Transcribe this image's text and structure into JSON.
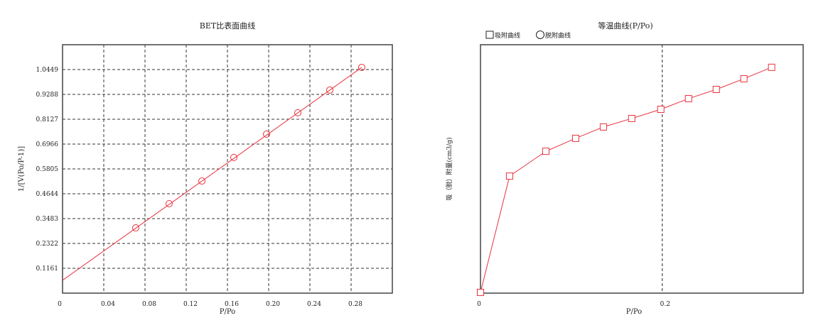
{
  "chart_data": [
    {
      "type": "scatter",
      "title": "BET比表面曲线",
      "xlabel": "P/Po",
      "ylabel": "1/[V(Po/P-1)]",
      "xlim": [
        0,
        0.32
      ],
      "ylim": [
        0,
        1.161
      ],
      "x_ticks": [
        "0",
        "0.04",
        "0.08",
        "0.12",
        "0.16",
        "0.20",
        "0.24",
        "0.28"
      ],
      "x_tick_values": [
        0,
        0.04,
        0.08,
        0.12,
        0.16,
        0.2,
        0.24,
        0.28
      ],
      "y_ticks": [
        "0.1161",
        "0.2322",
        "0.3483",
        "0.4644",
        "0.5805",
        "0.6966",
        "0.8127",
        "0.9288",
        "1.0449"
      ],
      "y_tick_values": [
        0.1161,
        0.2322,
        0.3483,
        0.4644,
        0.5805,
        0.6966,
        0.8127,
        0.9288,
        1.0449
      ],
      "grid": true,
      "marker": "circle",
      "color": "#e8323c",
      "x": [
        0.071,
        0.1034,
        0.1352,
        0.1662,
        0.1979,
        0.2283,
        0.2593,
        0.2903
      ],
      "y": [
        0.305,
        0.418,
        0.524,
        0.634,
        0.743,
        0.843,
        0.949,
        1.055
      ],
      "fit_line": {
        "x": [
          0,
          0.2903
        ],
        "y": [
          0.06,
          1.055
        ]
      }
    },
    {
      "type": "line",
      "title": "等温曲线(P/Po)",
      "xlabel": "P/Po",
      "ylabel": "吸（脱）附量(cm3/g)",
      "xlim": [
        0,
        0.355
      ],
      "ylim": [
        0,
        100
      ],
      "x_ticks": [
        "0",
        "0.2"
      ],
      "x_tick_values": [
        0,
        0.2
      ],
      "grid": "vertical at 0.2",
      "legend": {
        "position": "top-left",
        "entries": [
          {
            "label": "吸附曲线",
            "marker": "square"
          },
          {
            "label": "脱附曲线",
            "marker": "circle"
          }
        ]
      },
      "color": "#e8323c",
      "series": [
        {
          "name": "吸附曲线",
          "marker": "square",
          "x": [
            0,
            0.032,
            0.0719,
            0.1047,
            0.1352,
            0.1664,
            0.1984,
            0.2289,
            0.2594,
            0.2898,
            0.3203
          ],
          "y": [
            0.3,
            47.1,
            57.1,
            62.3,
            66.9,
            70.3,
            74.0,
            78.3,
            82.0,
            86.3,
            90.9
          ]
        }
      ]
    }
  ]
}
